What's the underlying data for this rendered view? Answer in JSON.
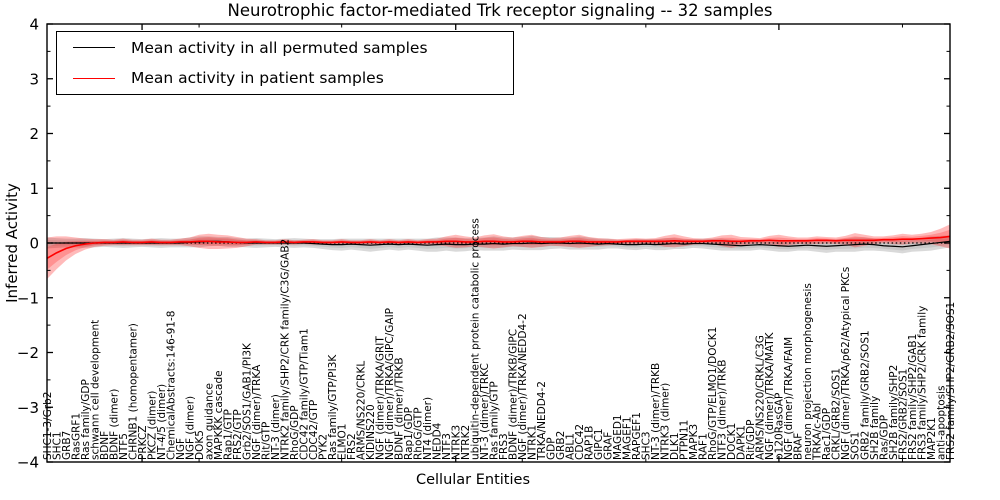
{
  "chart_data": {
    "type": "line",
    "title": "Neurotrophic factor-mediated Trk receptor signaling -- 32 samples",
    "xlabel": "Cellular Entities",
    "ylabel": "Inferred Activity",
    "ylim": [
      -4,
      4
    ],
    "yticks": [
      -4,
      -3,
      -2,
      -1,
      0,
      1,
      2,
      3,
      4
    ],
    "y_minor_step": 0.5,
    "grid": false,
    "legend_position": "upper left",
    "zero_line": {
      "style": "dotted",
      "color": "#000000",
      "y": 0
    },
    "x_major_tick_idx": [
      10,
      43,
      77
    ],
    "x_minor_tick_idx": [
      16,
      31,
      50,
      63,
      90
    ],
    "categories": [
      "SHC1-3/Grb2",
      "SHC1",
      "GRB7",
      "RasGRF1",
      "Ras family/GDP",
      "schwann cell development",
      "BDNF",
      "BDNF (dimer)",
      "NTF5",
      "CHRNB1 (homopentamer)",
      "PRKCZ",
      "PKCZ (dimer)",
      "NT-4/5 (dimer)",
      "ChemicalAbstracts:146-91-8",
      "NGF",
      "NGF (dimer)",
      "DOK5",
      "axon guidance",
      "MAPKKK cascade",
      "Rap1/GTP",
      "FRS2/GTP",
      "Grb2/SOS1/GAB1/PI3K",
      "NGF (dimer)/TRKA",
      "Rit/GTP",
      "NT-3 (dimer)",
      "NTRK2 family/SHP2/CRK family/C3G/GAB2",
      "RhoG/GDP",
      "CDC42 family/GTP/Tiam1",
      "CDC42/GTP",
      "PYK2",
      "Ras family/GTP/PI3K",
      "ELMO1",
      "FRS2",
      "ARMS/NS220/CRKL",
      "KIDINS220",
      "NGF (dimer)/TRKA/GRIT",
      "NGF (dimer)/TRKA/GIPC/GAIP",
      "BDNF (dimer)/TRKB",
      "Rap1/GDP",
      "RhoG/GTP",
      "NT4 (dimer)",
      "NEDD4",
      "NTF3",
      "NTRK3",
      "NTRK2",
      "ubiquitin-dependent protein catabolic process",
      "NT-3 (dimer)/TRKC",
      "Ras family/GTP",
      "FRS3",
      "BDNF (dimer)/TRKB/GIPC",
      "NGF (dimer)/TRKA/NEDD4-2",
      "NTRK1",
      "TRKA/NEDD4-2",
      "GDP",
      "GRB2",
      "ABL1",
      "CDC42",
      "RAP1B",
      "GIPC1",
      "GRAF",
      "MAGED1",
      "MAGEF1",
      "RAPGEF1",
      "SHC3",
      "NT-3 (dimer)/TRKB",
      "NTRK3 (dimer)",
      "DLK1",
      "PTPN11",
      "MAPK3",
      "RAF1",
      "RhoG/GTP/ELMO1/DOCK1",
      "NTF3 (dimer)/TRKB",
      "DOCK1",
      "DAPK1",
      "Rit/GDP",
      "ARMS/NS220/CRKL/C3G",
      "NGF (dimer)/TRKA/MATK",
      "p120RasGAP",
      "NGF (dimer)/TRKA/FAIM",
      "BRAF",
      "neuron projection morphogenesis",
      "TRKA/c-Abl",
      "Rac1/GDP",
      "CRKL/GRB2/SOS1",
      "NGF (dimer)/TRKA/p62/Atypical PKCs",
      "SOS1",
      "GRB2 family/GRB2/SOS1",
      "SH2B family",
      "Ras/GDP",
      "SH2B family/SHP2",
      "FRS2/GRB2/SOS1",
      "FRS2 family/SHP2/GAB1",
      "FRS3 family/SHP2/CRK family",
      "MAP2K1",
      "anti-apoptosis",
      "FRS2 family/SHP2/GRB2/SOS1"
    ],
    "series": [
      {
        "name": "Mean activity in all permuted samples",
        "color": "#000000",
        "band_color": "rgba(0,0,0,0.15)",
        "values": [
          0,
          0,
          0,
          0,
          0,
          0,
          0,
          0,
          0,
          0,
          0,
          0,
          0,
          0,
          0,
          0.01,
          0.02,
          0.03,
          0.03,
          0.02,
          0.01,
          0,
          0,
          0,
          0,
          0,
          0,
          0,
          -0.01,
          -0.02,
          -0.03,
          -0.03,
          -0.02,
          -0.03,
          -0.04,
          -0.03,
          -0.02,
          -0.03,
          -0.02,
          -0.03,
          -0.04,
          -0.03,
          -0.02,
          -0.03,
          -0.03,
          -0.02,
          -0.02,
          -0.01,
          -0.02,
          -0.01,
          -0.01,
          0,
          -0.01,
          0,
          0,
          -0.01,
          0,
          -0.01,
          -0.02,
          -0.01,
          -0.02,
          -0.03,
          -0.03,
          -0.02,
          -0.03,
          -0.02,
          -0.01,
          -0.02,
          -0.01,
          -0.01,
          -0.02,
          -0.03,
          -0.04,
          -0.05,
          -0.04,
          -0.03,
          -0.04,
          -0.05,
          -0.06,
          -0.05,
          -0.04,
          -0.05,
          -0.06,
          -0.05,
          -0.04,
          -0.03,
          -0.02,
          -0.03,
          -0.05,
          -0.06,
          -0.07,
          -0.05,
          -0.03,
          -0.01,
          0.01,
          0.03
        ],
        "band_halfwidth": [
          0.1,
          0.09,
          0.08,
          0.08,
          0.09,
          0.08,
          0.07,
          0.08,
          0.09,
          0.08,
          0.07,
          0.08,
          0.09,
          0.08,
          0.08,
          0.09,
          0.1,
          0.09,
          0.08,
          0.09,
          0.08,
          0.08,
          0.09,
          0.08,
          0.07,
          0.08,
          0.09,
          0.08,
          0.08,
          0.09,
          0.1,
          0.11,
          0.1,
          0.11,
          0.12,
          0.11,
          0.1,
          0.11,
          0.1,
          0.11,
          0.12,
          0.13,
          0.12,
          0.13,
          0.12,
          0.11,
          0.12,
          0.13,
          0.12,
          0.11,
          0.12,
          0.13,
          0.12,
          0.11,
          0.1,
          0.11,
          0.12,
          0.11,
          0.1,
          0.09,
          0.08,
          0.09,
          0.1,
          0.09,
          0.1,
          0.11,
          0.1,
          0.09,
          0.08,
          0.09,
          0.1,
          0.11,
          0.1,
          0.09,
          0.1,
          0.09,
          0.1,
          0.11,
          0.1,
          0.09,
          0.1,
          0.11,
          0.12,
          0.11,
          0.12,
          0.13,
          0.12,
          0.11,
          0.1,
          0.11,
          0.12,
          0.11,
          0.12,
          0.13,
          0.12,
          0.11
        ]
      },
      {
        "name": "Mean activity in patient samples",
        "color": "#ff0000",
        "band_color": "rgba(255,0,0,0.27)",
        "values": [
          -0.28,
          -0.18,
          -0.1,
          -0.05,
          -0.02,
          0,
          0.01,
          0.01,
          0.02,
          0.01,
          0.01,
          0.02,
          0.01,
          0.01,
          0.02,
          0.02,
          0.03,
          0.03,
          0.02,
          0.02,
          0.01,
          0.01,
          0.02,
          0.01,
          0.01,
          0.02,
          0.01,
          0.02,
          0.02,
          0.01,
          0.01,
          0.02,
          0.01,
          0.01,
          0.02,
          0.01,
          0.02,
          0.01,
          0.02,
          0.01,
          0.02,
          0.02,
          0.03,
          0.03,
          0.02,
          0.02,
          0.03,
          0.03,
          0.02,
          0.02,
          0.03,
          0.03,
          0.02,
          0.02,
          0.02,
          0.03,
          0.03,
          0.02,
          0.02,
          0.02,
          0.02,
          0.03,
          0.03,
          0.03,
          0.03,
          0.03,
          0.04,
          0.03,
          0.03,
          0.03,
          0.04,
          0.04,
          0.03,
          0.03,
          0.04,
          0.04,
          0.05,
          0.04,
          0.04,
          0.04,
          0.04,
          0.05,
          0.05,
          0.04,
          0.05,
          0.05,
          0.05,
          0.05,
          0.06,
          0.06,
          0.07,
          0.07,
          0.08,
          0.09,
          0.1,
          0.12
        ],
        "band_halfwidth": [
          0.38,
          0.3,
          0.22,
          0.15,
          0.1,
          0.07,
          0.06,
          0.05,
          0.06,
          0.05,
          0.05,
          0.06,
          0.05,
          0.05,
          0.06,
          0.08,
          0.12,
          0.14,
          0.13,
          0.12,
          0.1,
          0.07,
          0.05,
          0.04,
          0.04,
          0.05,
          0.04,
          0.04,
          0.05,
          0.04,
          0.04,
          0.05,
          0.04,
          0.04,
          0.05,
          0.04,
          0.05,
          0.04,
          0.05,
          0.04,
          0.05,
          0.06,
          0.09,
          0.12,
          0.1,
          0.08,
          0.11,
          0.13,
          0.1,
          0.08,
          0.1,
          0.12,
          0.09,
          0.07,
          0.08,
          0.1,
          0.12,
          0.09,
          0.07,
          0.06,
          0.05,
          0.05,
          0.06,
          0.05,
          0.06,
          0.1,
          0.12,
          0.09,
          0.06,
          0.05,
          0.06,
          0.1,
          0.12,
          0.08,
          0.06,
          0.05,
          0.08,
          0.11,
          0.08,
          0.06,
          0.06,
          0.07,
          0.06,
          0.06,
          0.08,
          0.13,
          0.1,
          0.07,
          0.06,
          0.08,
          0.1,
          0.08,
          0.09,
          0.11,
          0.16,
          0.22
        ]
      }
    ]
  },
  "legend": {
    "items": [
      {
        "label": "Mean activity in all permuted samples",
        "color": "#000000"
      },
      {
        "label": "Mean activity in patient samples",
        "color": "#ff0000"
      }
    ]
  }
}
